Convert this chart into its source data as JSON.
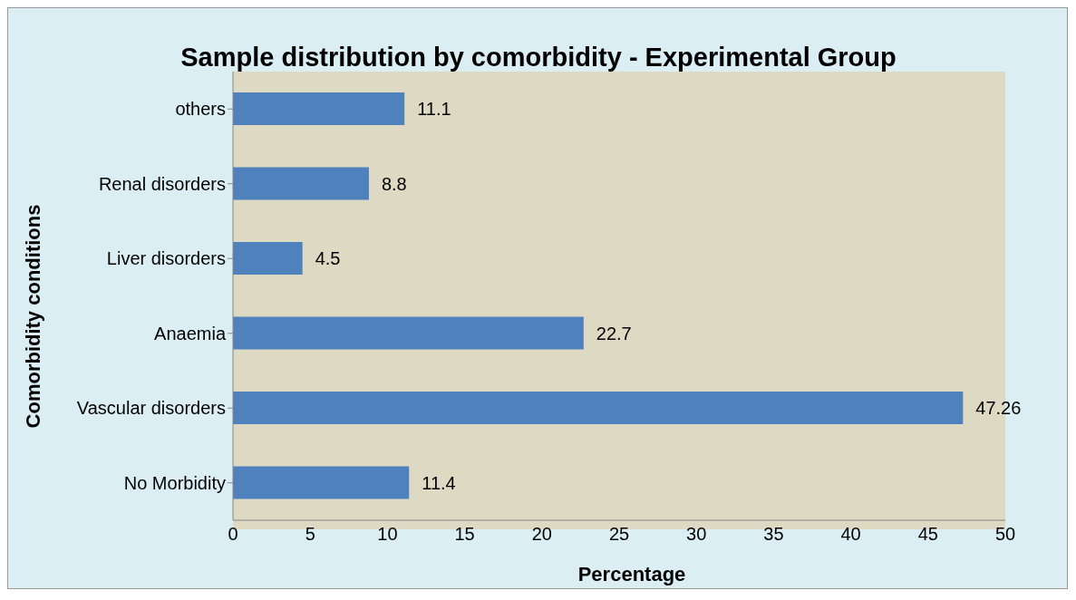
{
  "chart_data": {
    "type": "bar",
    "orientation": "horizontal",
    "title": "Sample distribution by comorbidity - Experimental Group",
    "xlabel": "Percentage",
    "ylabel": "Comorbidity conditions",
    "categories": [
      "others",
      "Renal disorders",
      "Liver disorders",
      "Anaemia",
      "Vascular disorders",
      "No Morbidity"
    ],
    "values": [
      11.1,
      8.8,
      4.5,
      22.7,
      47.26,
      11.4
    ],
    "color": "#4f81bd",
    "data_labels": true,
    "xlim": [
      0,
      50
    ],
    "xticks": [
      0,
      5,
      10,
      15,
      20,
      25,
      30,
      35,
      40,
      45,
      50
    ],
    "grid": false,
    "legend": false
  }
}
